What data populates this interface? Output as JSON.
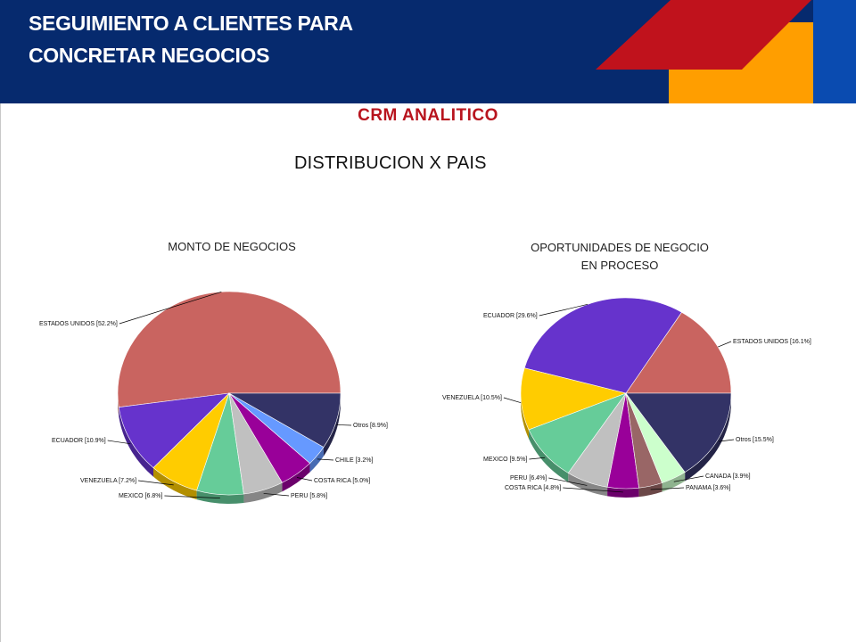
{
  "header": {
    "title_line1": "SEGUIMIENTO A CLIENTES PARA",
    "title_line2": "CONCRETAR NEGOCIOS"
  },
  "section_title": "CRM ANALITICO",
  "subtitle": "DISTRIBUCION  X PAIS",
  "colors": {
    "header_bg": "#062a6e",
    "accent_red": "#c0121c",
    "accent_orange": "#ff9e00",
    "accent_blue": "#0a4bb0"
  },
  "chart_data": [
    {
      "type": "pie",
      "title_lines": [
        "MONTO DE NEGOCIOS"
      ],
      "slices": [
        {
          "label": "ESTADOS UNIDOS [52.2%]",
          "value": 52.2,
          "color": "#c96460"
        },
        {
          "label": "ECUADOR [10.9%]",
          "value": 10.9,
          "color": "#6633cc"
        },
        {
          "label": "VENEZUELA [7.2%]",
          "value": 7.2,
          "color": "#ffcc00"
        },
        {
          "label": "MEXICO [6.8%]",
          "value": 6.8,
          "color": "#66cc99"
        },
        {
          "label": "PERU [5.8%]",
          "value": 5.8,
          "color": "#c0c0c0"
        },
        {
          "label": "COSTA RICA [5.0%]",
          "value": 5.0,
          "color": "#990099"
        },
        {
          "label": "CHILE [3.2%]",
          "value": 3.2,
          "color": "#6699ff"
        },
        {
          "label": "Otros [8.9%]",
          "value": 8.9,
          "color": "#333366"
        }
      ]
    },
    {
      "type": "pie",
      "title_lines": [
        "OPORTUNIDADES DE NEGOCIO",
        "EN PROCESO"
      ],
      "slices": [
        {
          "label": "ESTADOS UNIDOS [16.1%]",
          "value": 16.1,
          "color": "#c96460"
        },
        {
          "label": "ECUADOR [29.6%]",
          "value": 29.6,
          "color": "#6633cc"
        },
        {
          "label": "VENEZUELA [10.5%]",
          "value": 10.5,
          "color": "#ffcc00"
        },
        {
          "label": "MEXICO [9.5%]",
          "value": 9.5,
          "color": "#66cc99"
        },
        {
          "label": "PERU [6.4%]",
          "value": 6.4,
          "color": "#c0c0c0"
        },
        {
          "label": "COSTA RICA [4.8%]",
          "value": 4.8,
          "color": "#990099"
        },
        {
          "label": "PANAMA [3.6%]",
          "value": 3.6,
          "color": "#996666"
        },
        {
          "label": "CANADA [3.9%]",
          "value": 3.9,
          "color": "#ccffcc"
        },
        {
          "label": "Otros [15.5%]",
          "value": 15.5,
          "color": "#333366"
        }
      ]
    }
  ]
}
